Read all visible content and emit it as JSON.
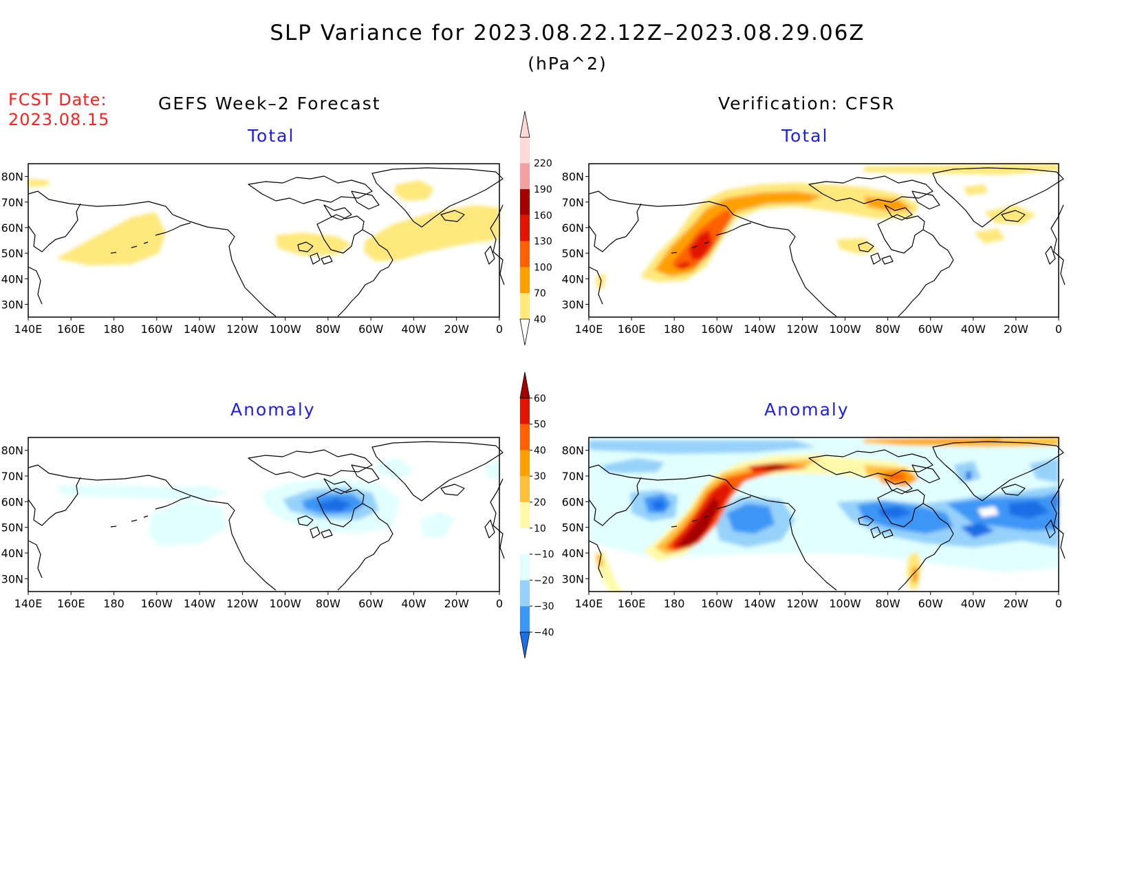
{
  "header": {
    "title": "SLP Variance for 2023.08.22.12Z–2023.08.29.06Z",
    "units": "(hPa^2)",
    "fcst_label": "FCST Date:",
    "fcst_date": "2023.08.15"
  },
  "columns": {
    "left_title": "GEFS Week–2 Forecast",
    "right_title": "Verification: CFSR"
  },
  "panels": {
    "total_label": "Total",
    "anomaly_label": "Anomaly"
  },
  "axes": {
    "lat_labels": [
      "80N",
      "70N",
      "60N",
      "50N",
      "40N",
      "30N"
    ],
    "lon_labels": [
      "140E",
      "160E",
      "180",
      "160W",
      "140W",
      "120W",
      "100W",
      "80W",
      "60W",
      "40W",
      "20W",
      "0"
    ]
  },
  "colorbars": {
    "total": {
      "levels": [
        "40",
        "70",
        "100",
        "130",
        "160",
        "190",
        "220"
      ],
      "colors": [
        "#ffe87c",
        "#ffa000",
        "#ff6000",
        "#e11600",
        "#a50000",
        "#f5a0a0",
        "#ffd8d8"
      ]
    },
    "anomaly": {
      "levels": [
        "−40",
        "−30",
        "−20",
        "−10",
        "10",
        "20",
        "30",
        "40",
        "50",
        "60"
      ],
      "colors": [
        "#1e6ee6",
        "#3c96f5",
        "#96d2fa",
        "#e1ffff",
        "#ffffff",
        "#fffaaa",
        "#ffc03c",
        "#ffa000",
        "#ff6000",
        "#e11600",
        "#a50000"
      ]
    }
  },
  "map_colors": {
    "yellow": "#ffe87c",
    "orange": "#ffa000",
    "red_orange": "#ff6000",
    "red": "#e11600",
    "dark_red": "#a50000",
    "cyan_light": "#e1ffff",
    "blue_light": "#96d2fa",
    "blue_mid": "#3c96f5",
    "blue_dark": "#1e6ee6",
    "pale_yellow": "#fffaaa"
  }
}
